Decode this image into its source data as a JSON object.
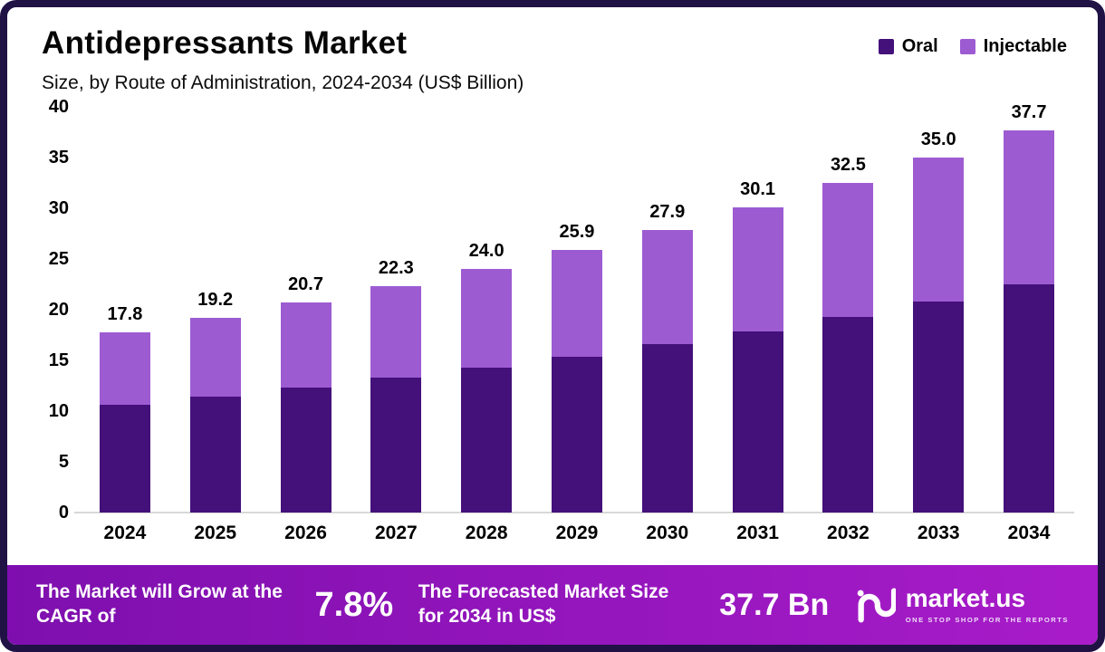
{
  "header": {
    "title": "Antidepressants Market",
    "subtitle": "Size, by Route of Administration, 2024-2034 (US$ Billion)"
  },
  "legend": [
    {
      "label": "Oral",
      "color": "#44107a"
    },
    {
      "label": "Injectable",
      "color": "#9d5bd2"
    }
  ],
  "chart_data": {
    "type": "bar",
    "stacked": true,
    "title": "Antidepressants Market",
    "subtitle": "Size, by Route of Administration, 2024-2034 (US$ Billion)",
    "categories": [
      "2024",
      "2025",
      "2026",
      "2027",
      "2028",
      "2029",
      "2030",
      "2031",
      "2032",
      "2033",
      "2034"
    ],
    "series": [
      {
        "name": "Oral",
        "color": "#44107a",
        "values": [
          10.6,
          11.4,
          12.3,
          13.3,
          14.3,
          15.4,
          16.6,
          17.9,
          19.3,
          20.8,
          22.5
        ]
      },
      {
        "name": "Injectable",
        "color": "#9d5bd2",
        "values": [
          7.2,
          7.8,
          8.4,
          9.0,
          9.7,
          10.5,
          11.3,
          12.2,
          13.2,
          14.2,
          15.2
        ]
      }
    ],
    "totals": [
      17.8,
      19.2,
      20.7,
      22.3,
      24.0,
      25.9,
      27.9,
      30.1,
      32.5,
      35.0,
      37.7
    ],
    "total_labels": [
      "17.8",
      "19.2",
      "20.7",
      "22.3",
      "24.0",
      "25.9",
      "27.9",
      "30.1",
      "32.5",
      "35.0",
      "37.7"
    ],
    "ylim": [
      0,
      40
    ],
    "yticks": [
      0,
      5,
      10,
      15,
      20,
      25,
      30,
      35,
      40
    ],
    "grid": false,
    "legend_position": "top-right"
  },
  "footer": {
    "cagr_label": "The Market will Grow at the CAGR of",
    "cagr_value": "7.8%",
    "forecast_label": "The Forecasted Market Size for 2034 in US$",
    "forecast_value": "37.7 Bn",
    "brand": "market.us",
    "brand_tagline": "ONE STOP SHOP FOR THE REPORTS"
  },
  "colors": {
    "oral": "#44107a",
    "injectable": "#9d5bd2",
    "border": "#201245",
    "footer_gradient_start": "#7e0fae",
    "footer_gradient_end": "#a81cc9",
    "baseline": "#d8d8d8"
  }
}
